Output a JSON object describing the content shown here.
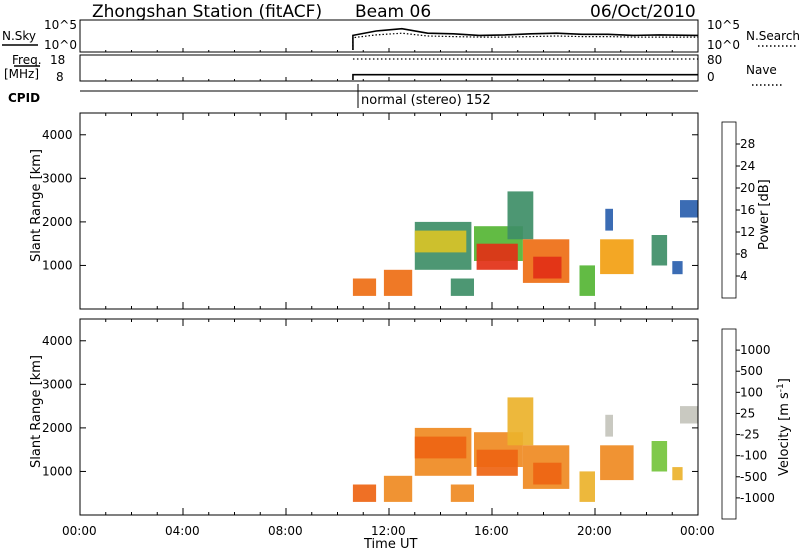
{
  "header": {
    "title": "Zhongshan Station (fitACF)",
    "beam": "Beam 06",
    "date": "06/Oct/2010"
  },
  "top_panels": {
    "nsky_label": "N.Sky",
    "nsearch_label": "N.Search",
    "freq_label_1": "Freq.",
    "freq_label_2": "[MHz]",
    "nave_label": "Nave",
    "cpid_label": "CPID",
    "noise_ticks_left": [
      "10^5",
      "10^0"
    ],
    "noise_ticks_right": [
      "10^5",
      "10^0"
    ],
    "freq_ticks": [
      "18",
      "8"
    ],
    "nave_ticks": [
      "80",
      "0"
    ],
    "cpid_text": "normal (stereo) 152"
  },
  "chart_data": [
    {
      "type": "line",
      "title": "N.Sky / N.Search",
      "ylim_log10": [
        0,
        5
      ],
      "x_hours": [
        10.6,
        11.5,
        12.5,
        13.5,
        14.5,
        15.5,
        16.5,
        17.5,
        18.5,
        19.5,
        20.5,
        21.5,
        22.5,
        24
      ],
      "series": [
        {
          "name": "N.Sky",
          "values_log10": [
            2.6,
            3.4,
            3.8,
            3.0,
            2.9,
            2.6,
            2.7,
            2.9,
            3.0,
            2.8,
            2.8,
            2.6,
            2.7,
            2.6
          ]
        },
        {
          "name": "N.Search",
          "values_log10": [
            2.2,
            2.7,
            3.0,
            2.5,
            2.4,
            2.3,
            2.3,
            2.4,
            2.5,
            2.4,
            2.4,
            2.3,
            2.3,
            2.3
          ]
        }
      ]
    },
    {
      "type": "line",
      "title": "Freq / Nave",
      "x_hours": [
        10.6,
        24
      ],
      "freq_ylim_mhz": [
        8,
        18
      ],
      "nave_ylim": [
        0,
        80
      ],
      "series": [
        {
          "name": "Freq.",
          "values_mhz": [
            10.2,
            10.2
          ]
        },
        {
          "name": "Nave",
          "values": [
            70,
            70
          ]
        }
      ]
    },
    {
      "type": "heatmap",
      "title": "Power",
      "xlabel": "Time UT",
      "ylabel": "Slant Range [km]",
      "x_ticks": [
        "00:00",
        "04:00",
        "08:00",
        "12:00",
        "16:00",
        "20:00",
        "00:00"
      ],
      "y_ticks": [
        1000,
        2000,
        3000,
        4000
      ],
      "colorbar_label": "Power [dB]",
      "colorbar_ticks": [
        "4",
        "8",
        "12",
        "16",
        "20",
        "24",
        "28"
      ],
      "colors": [
        "#1a2fe0",
        "#2a5fae",
        "#3e8e67",
        "#55b534",
        "#d8c327",
        "#f2a012",
        "#ee6e14",
        "#e23016"
      ],
      "regions": [
        {
          "t0": 10.6,
          "t1": 11.5,
          "r0": 300,
          "r1": 700,
          "level": 6
        },
        {
          "t0": 11.8,
          "t1": 12.9,
          "r0": 300,
          "r1": 900,
          "level": 6
        },
        {
          "t0": 13.0,
          "t1": 15.2,
          "r0": 900,
          "r1": 2000,
          "level": 2
        },
        {
          "t0": 13.0,
          "t1": 15.0,
          "r0": 1300,
          "r1": 1800,
          "level": 4
        },
        {
          "t0": 14.4,
          "t1": 15.3,
          "r0": 300,
          "r1": 700,
          "level": 2
        },
        {
          "t0": 15.3,
          "t1": 17.2,
          "r0": 1100,
          "r1": 1900,
          "level": 3
        },
        {
          "t0": 15.4,
          "t1": 17.0,
          "r0": 900,
          "r1": 1500,
          "level": 7
        },
        {
          "t0": 16.6,
          "t1": 17.6,
          "r0": 1600,
          "r1": 2700,
          "level": 2
        },
        {
          "t0": 17.2,
          "t1": 19.0,
          "r0": 600,
          "r1": 1600,
          "level": 6
        },
        {
          "t0": 17.6,
          "t1": 18.7,
          "r0": 700,
          "r1": 1200,
          "level": 7
        },
        {
          "t0": 19.4,
          "t1": 20.0,
          "r0": 300,
          "r1": 1000,
          "level": 3
        },
        {
          "t0": 20.2,
          "t1": 21.5,
          "r0": 800,
          "r1": 1600,
          "level": 5
        },
        {
          "t0": 20.4,
          "t1": 20.7,
          "r0": 1800,
          "r1": 2300,
          "level": 1
        },
        {
          "t0": 22.2,
          "t1": 22.8,
          "r0": 1000,
          "r1": 1700,
          "level": 2
        },
        {
          "t0": 23.0,
          "t1": 23.4,
          "r0": 800,
          "r1": 1100,
          "level": 1
        },
        {
          "t0": 23.3,
          "t1": 24.0,
          "r0": 2100,
          "r1": 2500,
          "level": 1
        }
      ]
    },
    {
      "type": "heatmap",
      "title": "Velocity",
      "xlabel": "Time UT",
      "ylabel": "Slant Range [km]",
      "x_ticks": [
        "00:00",
        "04:00",
        "08:00",
        "12:00",
        "16:00",
        "20:00",
        "00:00"
      ],
      "y_ticks": [
        1000,
        2000,
        3000,
        4000
      ],
      "colorbar_label": "Velocity [m s^-1]",
      "colorbar_ticks": [
        "1000",
        "500",
        "100",
        "25",
        "-25",
        "-100",
        "-500",
        "-1000"
      ],
      "colors": [
        "#2142c8",
        "#2c6a99",
        "#3a8f4d",
        "#74c43c",
        "#c4c4bc",
        "#ecb22b",
        "#ef8a22",
        "#ee6412",
        "#e21c12"
      ],
      "regions": [
        {
          "t0": 10.6,
          "t1": 11.5,
          "r0": 300,
          "r1": 700,
          "level": 7
        },
        {
          "t0": 11.8,
          "t1": 12.9,
          "r0": 300,
          "r1": 900,
          "level": 6
        },
        {
          "t0": 13.0,
          "t1": 15.2,
          "r0": 900,
          "r1": 2000,
          "level": 6
        },
        {
          "t0": 13.0,
          "t1": 15.0,
          "r0": 1300,
          "r1": 1800,
          "level": 7
        },
        {
          "t0": 14.4,
          "t1": 15.3,
          "r0": 300,
          "r1": 700,
          "level": 6
        },
        {
          "t0": 15.3,
          "t1": 17.2,
          "r0": 1100,
          "r1": 1900,
          "level": 6
        },
        {
          "t0": 15.4,
          "t1": 17.0,
          "r0": 900,
          "r1": 1500,
          "level": 7
        },
        {
          "t0": 16.6,
          "t1": 17.6,
          "r0": 1600,
          "r1": 2700,
          "level": 5
        },
        {
          "t0": 17.2,
          "t1": 19.0,
          "r0": 600,
          "r1": 1600,
          "level": 6
        },
        {
          "t0": 17.6,
          "t1": 18.7,
          "r0": 700,
          "r1": 1200,
          "level": 7
        },
        {
          "t0": 19.4,
          "t1": 20.0,
          "r0": 300,
          "r1": 1000,
          "level": 5
        },
        {
          "t0": 20.2,
          "t1": 21.5,
          "r0": 800,
          "r1": 1600,
          "level": 6
        },
        {
          "t0": 20.4,
          "t1": 20.7,
          "r0": 1800,
          "r1": 2300,
          "level": 4
        },
        {
          "t0": 22.2,
          "t1": 22.8,
          "r0": 1000,
          "r1": 1700,
          "level": 3
        },
        {
          "t0": 23.0,
          "t1": 23.4,
          "r0": 800,
          "r1": 1100,
          "level": 5
        },
        {
          "t0": 23.3,
          "t1": 24.0,
          "r0": 2100,
          "r1": 2500,
          "level": 4
        }
      ]
    }
  ]
}
